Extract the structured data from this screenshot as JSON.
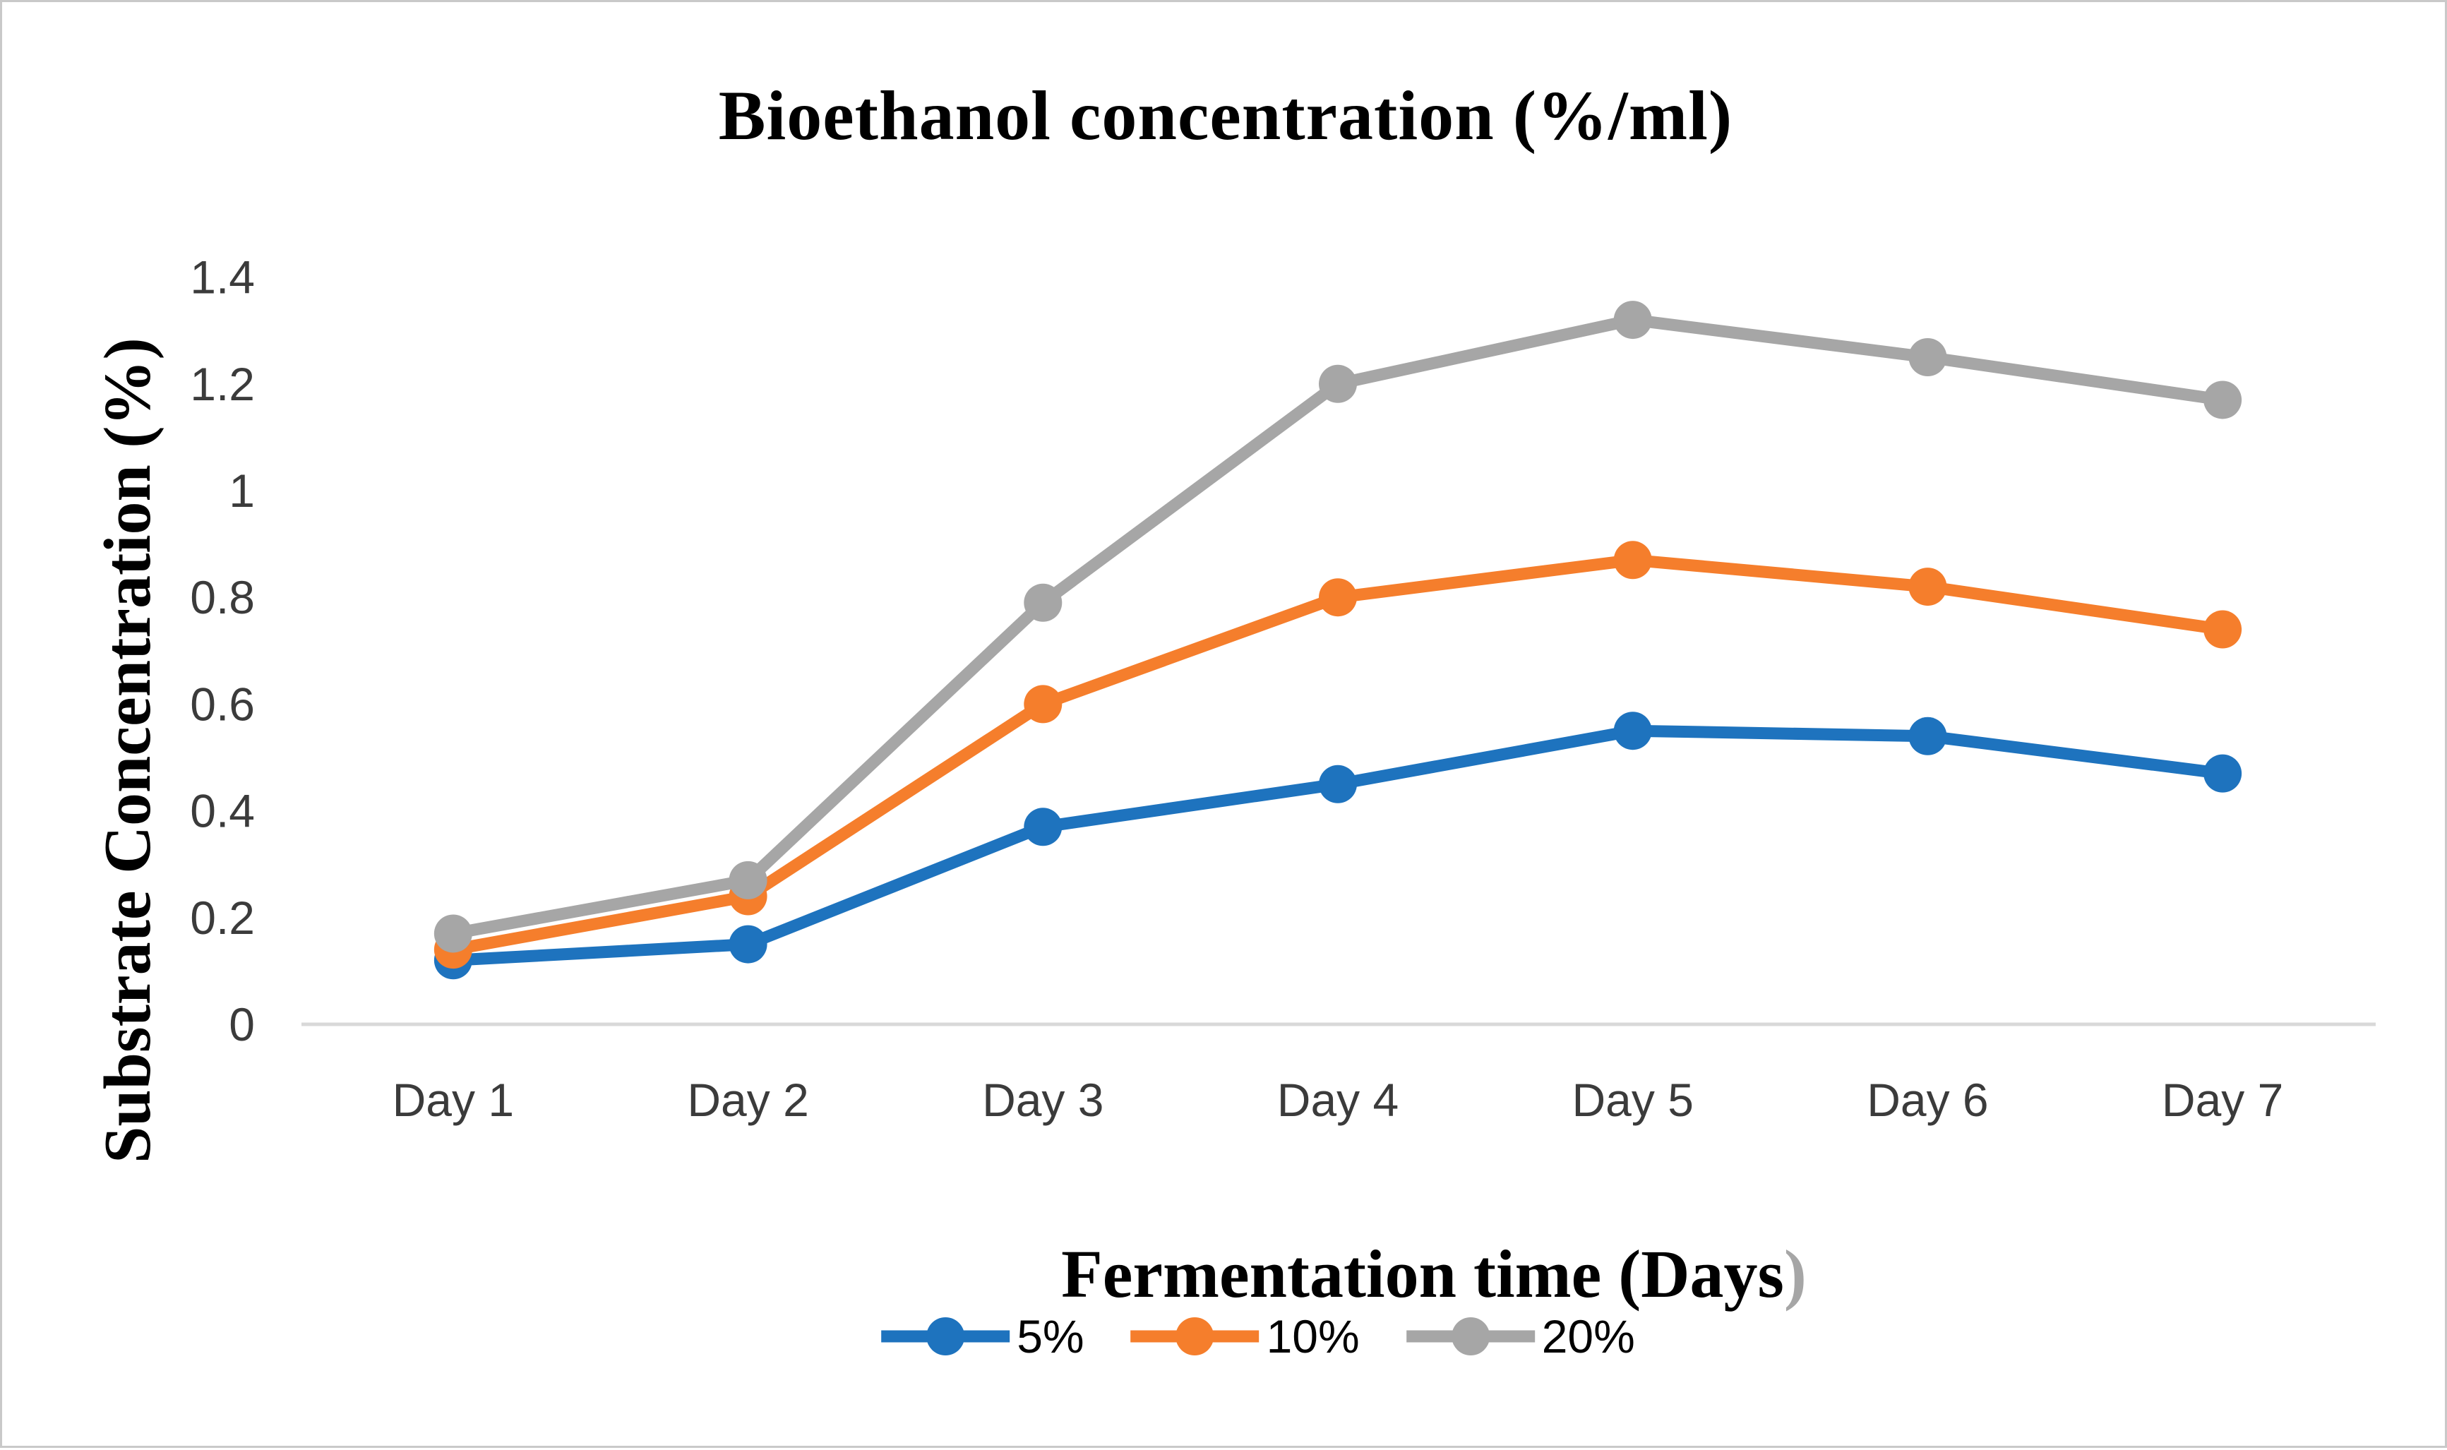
{
  "page": {
    "background": "#FFFFFF",
    "frame_border_color": "#C9C9C9"
  },
  "chart_data": {
    "type": "line",
    "title": "Bioethanol concentration (%/ml)",
    "xlabel": "Fermentation time (Days)",
    "xlabel_main": "Fermentation time (Days",
    "xlabel_paren": ")",
    "ylabel": "Substrate Concentration (%)",
    "categories": [
      "Day 1",
      "Day 2",
      "Day 3",
      "Day 4",
      "Day 5",
      "Day 6",
      "Day 7"
    ],
    "ylim": [
      0,
      1.4
    ],
    "y_ticks": {
      "values": [
        0,
        0.2,
        0.4,
        0.6,
        0.8,
        1,
        1.2,
        1.4
      ],
      "labels": [
        "0",
        "0.2",
        "0.4",
        "0.6",
        "0.8",
        "1",
        "1.2",
        "1.4"
      ]
    },
    "grid": false,
    "marker": "circle",
    "legend_position": "bottom-center",
    "axis_line_color": "#D9D9D9",
    "tick_text_color": "#3B3B3B",
    "paren_color": "#A6A6A6",
    "series": [
      {
        "name": "5%",
        "color": "#1E73BE",
        "values": [
          0.12,
          0.15,
          0.37,
          0.45,
          0.55,
          0.54,
          0.47
        ]
      },
      {
        "name": "10%",
        "color": "#F57E2C",
        "values": [
          0.14,
          0.24,
          0.6,
          0.8,
          0.87,
          0.82,
          0.74
        ]
      },
      {
        "name": "20%",
        "color": "#A6A6A6",
        "values": [
          0.17,
          0.27,
          0.79,
          1.2,
          1.32,
          1.25,
          1.17
        ]
      }
    ]
  }
}
